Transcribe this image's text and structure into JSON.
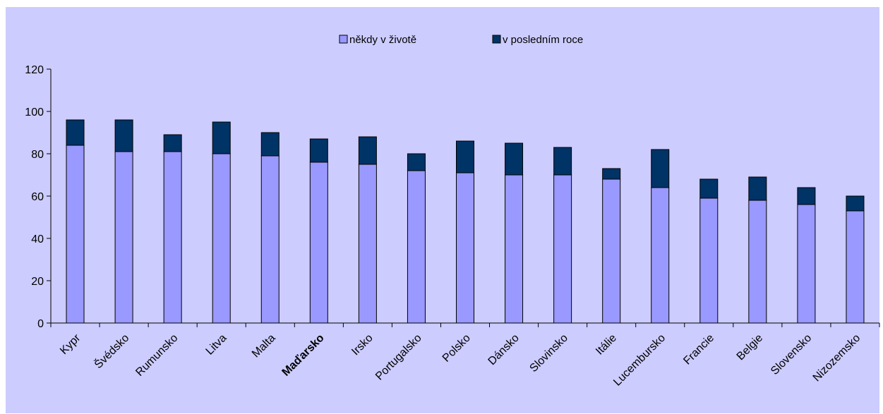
{
  "chart_data": {
    "type": "bar",
    "stacked": true,
    "categories": [
      "Kypr",
      "Švédsko",
      "Rumunsko",
      "Litva",
      "Malta",
      "Maďarsko",
      "Irsko",
      "Portugalsko",
      "Polsko",
      "Dánsko",
      "Slovinsko",
      "Itálie",
      "Lucembursko",
      "Francie",
      "Belgie",
      "Slovensko",
      "Nizozemsko"
    ],
    "highlight_category": "Maďarsko",
    "series": [
      {
        "name": "někdy v životě",
        "color": "#9999ff",
        "values": [
          84,
          81,
          81,
          80,
          79,
          76,
          75,
          72,
          71,
          70,
          70,
          68,
          64,
          59,
          58,
          56,
          53
        ]
      },
      {
        "name": "v posledním roce",
        "color": "#003366",
        "values": [
          12,
          15,
          8,
          15,
          11,
          11,
          13,
          8,
          15,
          15,
          13,
          5,
          18,
          9,
          11,
          8,
          7
        ]
      }
    ],
    "yticks": [
      0,
      20,
      40,
      60,
      80,
      100,
      120
    ],
    "ylim": [
      0,
      120
    ],
    "title": "",
    "xlabel": "",
    "ylabel": "",
    "legend_position": "top",
    "grid": false,
    "background": "#ccccff"
  }
}
